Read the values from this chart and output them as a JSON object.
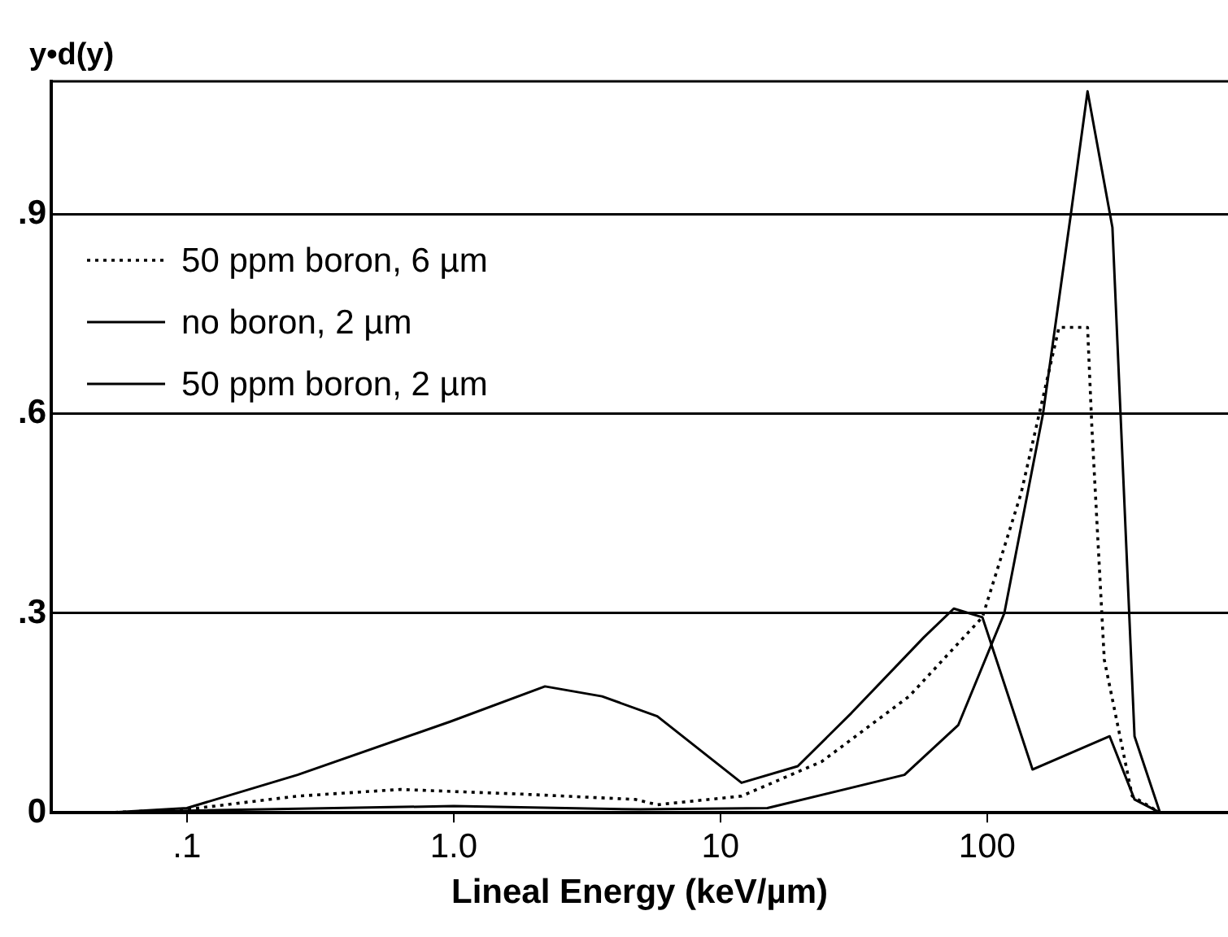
{
  "chart_data": {
    "type": "line",
    "ylabel": "y•d(y)",
    "xlabel": "Lineal Energy (keV/µm)",
    "log": "x",
    "grid": "y",
    "legend": "top left",
    "marker": "none",
    "xlim": [
      0.031,
      800
    ],
    "xticks": [
      {
        "value": 0.1,
        "label": ".1"
      },
      {
        "value": 1,
        "label": "1.0"
      },
      10,
      100
    ],
    "ylim": [
      0,
      1.1
    ],
    "yticks": [
      {
        "value": 0,
        "label": "0"
      },
      {
        "value": 0.3,
        "label": ".3"
      },
      {
        "value": 0.6,
        "label": ".6"
      },
      {
        "value": 0.9,
        "label": ".9"
      }
    ],
    "series": [
      {
        "name": "50 ppm boron, 6 µm",
        "color": "#000000",
        "line_style": "dotted",
        "x": [
          0.05,
          0.1,
          0.26,
          0.63,
          1.8,
          4.8,
          5.8,
          12,
          24,
          51,
          96,
          134,
          186,
          238,
          247,
          275,
          350,
          445
        ],
        "values": [
          0,
          0.005,
          0.025,
          0.035,
          0.028,
          0.02,
          0.012,
          0.025,
          0.077,
          0.175,
          0.294,
          0.48,
          0.73,
          0.73,
          0.58,
          0.23,
          0.025,
          0
        ]
      },
      {
        "name": "no boron, 2 µm",
        "color": "#000000",
        "line_style": "solid",
        "x": [
          0.05,
          0.1,
          0.26,
          0.97,
          2.2,
          3.6,
          5.8,
          12,
          19.5,
          31,
          58,
          75,
          96,
          148,
          288,
          357,
          445
        ],
        "values": [
          0,
          0.007,
          0.057,
          0.137,
          0.19,
          0.175,
          0.145,
          0.045,
          0.07,
          0.15,
          0.264,
          0.307,
          0.294,
          0.065,
          0.115,
          0.02,
          0
        ]
      },
      {
        "name": "50 ppm boron, 2 µm",
        "color": "#000000",
        "line_style": "solid",
        "x": [
          0.05,
          0.1,
          1,
          5,
          15,
          49,
          78,
          116,
          162,
          206,
          238,
          295,
          357,
          445
        ],
        "values": [
          0,
          0.003,
          0.01,
          0.005,
          0.007,
          0.057,
          0.132,
          0.3,
          0.6,
          0.9,
          1.085,
          0.88,
          0.115,
          0
        ]
      }
    ]
  }
}
